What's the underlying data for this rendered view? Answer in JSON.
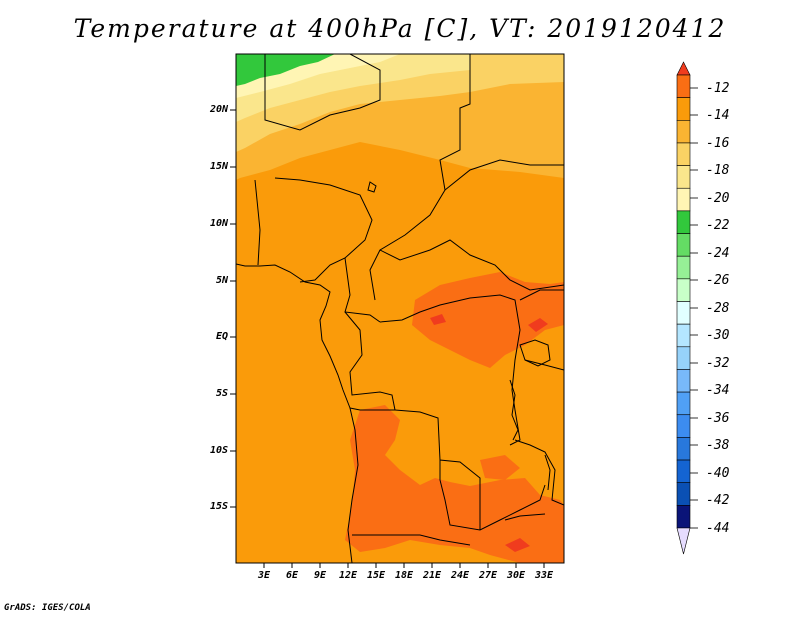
{
  "title": "Temperature at 400hPa [C], VT: 2019120412",
  "credit": "GrADS: IGES/COLA",
  "map": {
    "variable": "Temperature",
    "level": "400hPa",
    "units": "C",
    "valid_time": "2019120412",
    "lat_labels": [
      "20N",
      "15N",
      "10N",
      "5N",
      "EQ",
      "5S",
      "10S",
      "15S"
    ],
    "lon_labels": [
      "3E",
      "6E",
      "9E",
      "12E",
      "15E",
      "18E",
      "21E",
      "24E",
      "27E",
      "30E",
      "33E"
    ]
  },
  "colorbar": {
    "labels": [
      "-12",
      "-14",
      "-16",
      "-18",
      "-20",
      "-22",
      "-24",
      "-26",
      "-28",
      "-30",
      "-32",
      "-34",
      "-36",
      "-38",
      "-40",
      "-42",
      "-44"
    ],
    "colors": [
      "#f03c1e",
      "#fa6e14",
      "#fa9b0a",
      "#fab432",
      "#fad264",
      "#fae68c",
      "#fff5b4",
      "#32c83c",
      "#64dc64",
      "#96f096",
      "#c8ffc8",
      "#e1ffff",
      "#b4e6ff",
      "#96d2fa",
      "#78b9fa",
      "#50a0f5",
      "#3c8cf0",
      "#2878dc",
      "#1464d2",
      "#0a50b4",
      "#0a1478",
      "#e6dcff"
    ]
  }
}
